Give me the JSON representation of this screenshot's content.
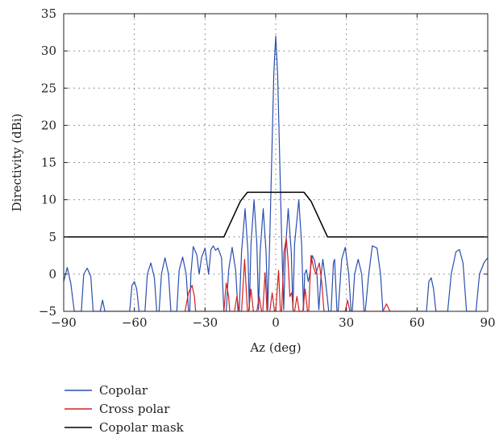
{
  "chart_data": {
    "type": "line",
    "title": "",
    "xlabel": "Az (deg)",
    "ylabel": "Directivity (dBi)",
    "xlim": [
      -90,
      90
    ],
    "ylim": [
      -5,
      35
    ],
    "x_ticks": [
      -90,
      -60,
      -30,
      0,
      30,
      60,
      90
    ],
    "y_ticks": [
      -5,
      0,
      5,
      10,
      15,
      20,
      25,
      30,
      35
    ],
    "grid": true,
    "legend_position": "bottom-left-below-plot",
    "series": [
      {
        "name": "Copolar",
        "color": "#2a4fb0",
        "points": [
          [
            -90,
            -1
          ],
          [
            -88.5,
            0.9
          ],
          [
            -87,
            -1.2
          ],
          [
            -85.5,
            -5
          ],
          [
            -82.5,
            -5
          ],
          [
            -81.5,
            0
          ],
          [
            -80,
            0.8
          ],
          [
            -78.5,
            -0.3
          ],
          [
            -77.5,
            -5
          ],
          [
            -74.5,
            -5
          ],
          [
            -73.5,
            -3.5
          ],
          [
            -72.5,
            -5
          ],
          [
            -62,
            -5
          ],
          [
            -61,
            -1.5
          ],
          [
            -60,
            -1
          ],
          [
            -59,
            -2
          ],
          [
            -58,
            -5
          ],
          [
            -55.5,
            -5
          ],
          [
            -54.5,
            0
          ],
          [
            -53,
            1.5
          ],
          [
            -51.5,
            -0.5
          ],
          [
            -50.5,
            -5
          ],
          [
            -49.5,
            -5
          ],
          [
            -48.5,
            0
          ],
          [
            -47,
            2.2
          ],
          [
            -45.5,
            0
          ],
          [
            -44.5,
            -5
          ],
          [
            -42,
            -5
          ],
          [
            -41,
            0.5
          ],
          [
            -39.5,
            2.3
          ],
          [
            -38,
            0
          ],
          [
            -37,
            -5
          ],
          [
            -36.5,
            -5
          ],
          [
            -36,
            0
          ],
          [
            -35,
            3.7
          ],
          [
            -33.5,
            2.6
          ],
          [
            -32.5,
            0
          ],
          [
            -31.5,
            2.2
          ],
          [
            -30,
            3.5
          ],
          [
            -28.5,
            0
          ],
          [
            -27.5,
            3.3
          ],
          [
            -26.5,
            3.8
          ],
          [
            -25.5,
            3.2
          ],
          [
            -24.5,
            3.5
          ],
          [
            -23,
            2.2
          ],
          [
            -22,
            -5
          ],
          [
            -21,
            -5
          ],
          [
            -20,
            0.5
          ],
          [
            -18.5,
            3.6
          ],
          [
            -17,
            0.5
          ],
          [
            -16,
            -5
          ],
          [
            -15.5,
            -5
          ],
          [
            -14.5,
            3
          ],
          [
            -13,
            8.8
          ],
          [
            -11.8,
            3
          ],
          [
            -11.2,
            -4.8
          ],
          [
            -10.5,
            4
          ],
          [
            -9.2,
            10
          ],
          [
            -8,
            4
          ],
          [
            -7.3,
            -4.8
          ],
          [
            -6.6,
            3
          ],
          [
            -5.3,
            8.8
          ],
          [
            -4.1,
            3
          ],
          [
            -3.4,
            -4.8
          ],
          [
            -2.5,
            5
          ],
          [
            -1.5,
            18
          ],
          [
            -0.8,
            27
          ],
          [
            0,
            32
          ],
          [
            0.8,
            27
          ],
          [
            1.5,
            18
          ],
          [
            2.5,
            5
          ],
          [
            3.4,
            -4.8
          ],
          [
            4.1,
            3
          ],
          [
            5.3,
            8.8
          ],
          [
            6.6,
            3
          ],
          [
            7.3,
            -4.8
          ],
          [
            8,
            4
          ],
          [
            9.8,
            10
          ],
          [
            11,
            4
          ],
          [
            11.8,
            -4.8
          ],
          [
            12.3,
            0
          ],
          [
            13,
            0.6
          ],
          [
            13.8,
            -1
          ],
          [
            14.5,
            0
          ],
          [
            15.5,
            2.5
          ],
          [
            16.5,
            1.8
          ],
          [
            17.5,
            0
          ],
          [
            18.3,
            -4.8
          ],
          [
            19.3,
            0
          ],
          [
            20,
            2
          ],
          [
            21,
            -0.5
          ],
          [
            22.5,
            -5
          ],
          [
            23.5,
            -5
          ],
          [
            24.5,
            1.5
          ],
          [
            25,
            2
          ],
          [
            26,
            -5
          ],
          [
            26.5,
            -5
          ],
          [
            28,
            2
          ],
          [
            29.5,
            3.6
          ],
          [
            31,
            0
          ],
          [
            32,
            -5
          ],
          [
            32.5,
            -5
          ],
          [
            33.5,
            0
          ],
          [
            35,
            2
          ],
          [
            36.5,
            0
          ],
          [
            37.5,
            -5
          ],
          [
            38,
            -5
          ],
          [
            39.5,
            0
          ],
          [
            41,
            3.8
          ],
          [
            43,
            3.5
          ],
          [
            44.5,
            0
          ],
          [
            45.5,
            -5
          ],
          [
            64,
            -5
          ],
          [
            65,
            -1
          ],
          [
            66,
            -0.5
          ],
          [
            67,
            -2
          ],
          [
            68,
            -5
          ],
          [
            73,
            -5
          ],
          [
            74.5,
            0
          ],
          [
            76.5,
            3
          ],
          [
            78,
            3.3
          ],
          [
            79.5,
            1.5
          ],
          [
            81,
            -5
          ],
          [
            85,
            -5
          ],
          [
            86.5,
            0
          ],
          [
            88.5,
            1.6
          ],
          [
            90,
            2.2
          ]
        ]
      },
      {
        "name": "Cross polar",
        "color": "#d42020",
        "points": [
          [
            -38.5,
            -5
          ],
          [
            -37,
            -2.5
          ],
          [
            -35.5,
            -1.5
          ],
          [
            -34.5,
            -3
          ],
          [
            -34,
            -5
          ],
          [
            -22,
            -5
          ],
          [
            -21,
            -1.2
          ],
          [
            -20,
            -3
          ],
          [
            -19.5,
            -5
          ],
          [
            -17.5,
            -5
          ],
          [
            -16.5,
            -3
          ],
          [
            -15.5,
            -5
          ],
          [
            -14.5,
            -5
          ],
          [
            -13.2,
            2
          ],
          [
            -12,
            -5
          ],
          [
            -11.5,
            -5
          ],
          [
            -10.5,
            -2
          ],
          [
            -9.5,
            -5
          ],
          [
            -8,
            -5
          ],
          [
            -7,
            -3
          ],
          [
            -6,
            -5
          ],
          [
            -5.5,
            -5
          ],
          [
            -4.5,
            0.2
          ],
          [
            -3.7,
            -5
          ],
          [
            -2.5,
            -5
          ],
          [
            -1.5,
            -2.5
          ],
          [
            -0.5,
            -5
          ],
          [
            0,
            -5
          ],
          [
            1.2,
            0.5
          ],
          [
            2,
            -5
          ],
          [
            2.5,
            -5
          ],
          [
            3.5,
            3
          ],
          [
            4.5,
            4.8
          ],
          [
            5.2,
            2
          ],
          [
            6,
            -3
          ],
          [
            6.8,
            -2.5
          ],
          [
            7.5,
            -5
          ],
          [
            8,
            -5
          ],
          [
            9,
            -3
          ],
          [
            10,
            -5
          ],
          [
            11.5,
            -5
          ],
          [
            12.5,
            -2
          ],
          [
            13.5,
            -5
          ],
          [
            14,
            -5
          ],
          [
            15,
            2.5
          ],
          [
            16,
            1
          ],
          [
            17,
            0
          ],
          [
            18.5,
            1.5
          ],
          [
            19.5,
            -1
          ],
          [
            20.5,
            -5
          ],
          [
            29.5,
            -5
          ],
          [
            30.5,
            -3.5
          ],
          [
            31.5,
            -5
          ],
          [
            45.5,
            -5
          ],
          [
            47,
            -4
          ],
          [
            48.5,
            -5
          ]
        ]
      },
      {
        "name": "Copolar mask",
        "color": "#000000",
        "points": [
          [
            -90,
            5
          ],
          [
            -22,
            5
          ],
          [
            -15,
            9.8
          ],
          [
            -12,
            11
          ],
          [
            -3,
            11
          ],
          [
            3,
            11
          ],
          [
            12,
            11
          ],
          [
            15,
            9.8
          ],
          [
            22,
            5
          ],
          [
            90,
            5
          ]
        ]
      }
    ]
  }
}
